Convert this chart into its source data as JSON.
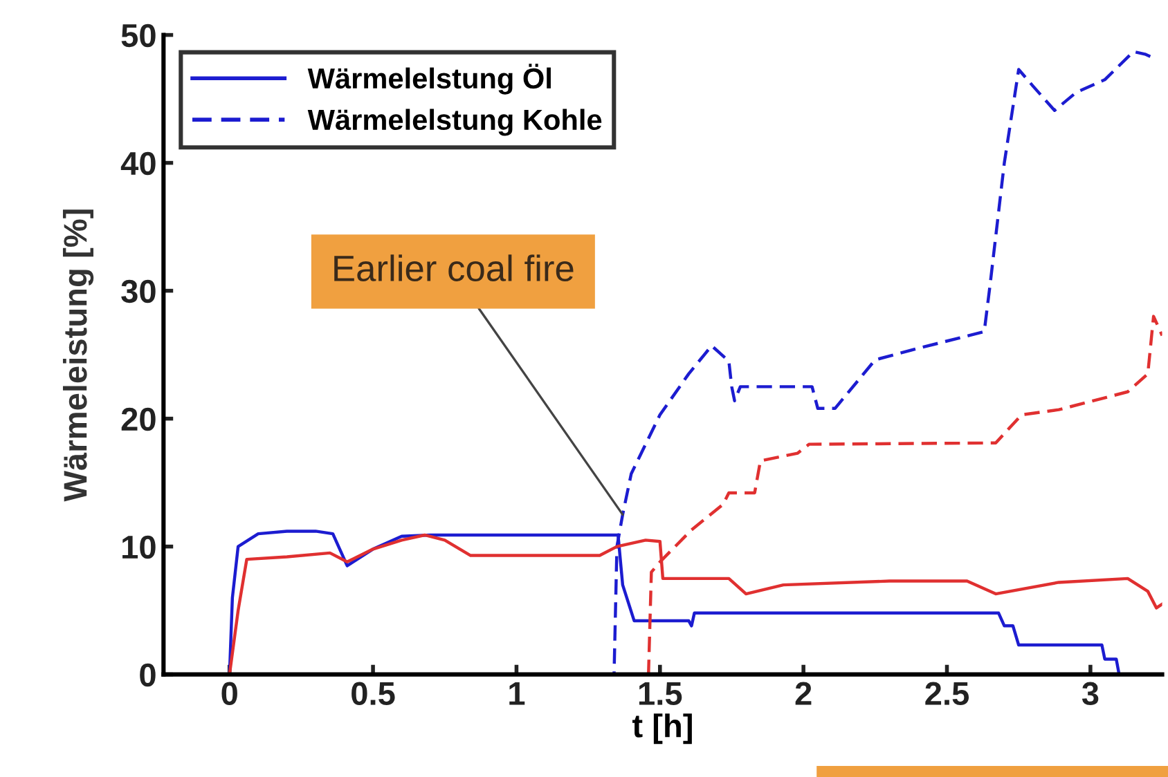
{
  "chart_data": {
    "type": "line",
    "xlabel": "t [h]",
    "ylabel": "Wärmeleistung [%]",
    "xlim": [
      -0.23,
      3.25
    ],
    "ylim": [
      0,
      50
    ],
    "xticks": [
      0,
      0.5,
      1,
      1.5,
      2,
      2.5,
      3
    ],
    "yticks": [
      0,
      10,
      20,
      30,
      40,
      50
    ],
    "legend": "top left",
    "series": [
      {
        "name": "Wärmelelstung Öl",
        "color": "#1c1cd0",
        "line_style": "solid",
        "x": [
          -0.23,
          0,
          0.01,
          0.03,
          0.1,
          0.2,
          0.3,
          0.36,
          0.41,
          0.5,
          0.6,
          0.7,
          1.0,
          1.354,
          1.37,
          1.41,
          1.6,
          1.61,
          1.62,
          2.0,
          2.68,
          2.7,
          2.73,
          2.75,
          3.04,
          3.05,
          3.09,
          3.1,
          3.25
        ],
        "values": [
          0,
          0,
          6,
          10,
          11,
          11.2,
          11.2,
          11,
          8.5,
          9.8,
          10.8,
          10.9,
          10.9,
          10.9,
          7,
          4.2,
          4.2,
          3.8,
          4.8,
          4.8,
          4.8,
          3.8,
          3.8,
          2.3,
          2.3,
          1.2,
          1.2,
          0,
          0
        ]
      },
      {
        "name": "Wärmelelstung Kohle",
        "color": "#1c1cd0",
        "line_style": "dashed",
        "x": [
          -0.23,
          1.0,
          1.33,
          1.34,
          1.35,
          1.37,
          1.4,
          1.5,
          1.6,
          1.68,
          1.74,
          1.75,
          1.76,
          1.78,
          2.03,
          2.05,
          2.11,
          2.25,
          2.4,
          2.63,
          2.65,
          2.7,
          2.75,
          2.8,
          2.875,
          2.95,
          3.05,
          3.15,
          3.19,
          3.22
        ],
        "values": [
          0,
          0,
          0,
          0,
          10,
          12.5,
          15.7,
          20.3,
          23.5,
          25.7,
          24.5,
          22.5,
          21.4,
          22.5,
          22.5,
          20.8,
          20.8,
          24.6,
          25.5,
          26.8,
          30.4,
          40,
          47.3,
          46,
          44.1,
          45.5,
          46.5,
          48.7,
          48.5,
          48.2
        ]
      },
      {
        "color": "#e03030",
        "line_style": "solid",
        "x": [
          -0.23,
          0,
          0.03,
          0.06,
          0.2,
          0.35,
          0.41,
          0.5,
          0.6,
          0.68,
          0.75,
          0.84,
          1.0,
          1.29,
          1.35,
          1.45,
          1.5,
          1.51,
          1.74,
          1.8,
          1.93,
          2.3,
          2.57,
          2.67,
          2.89,
          3.13,
          3.2,
          3.23,
          3.25
        ],
        "values": [
          0,
          0,
          5,
          9,
          9.2,
          9.5,
          8.8,
          9.8,
          10.5,
          10.9,
          10.5,
          9.3,
          9.3,
          9.3,
          10,
          10.5,
          10.4,
          7.5,
          7.5,
          6.3,
          7,
          7.3,
          7.3,
          6.3,
          7.2,
          7.5,
          6.5,
          5.2,
          5.5
        ]
      },
      {
        "color": "#e03030",
        "line_style": "dashed",
        "x": [
          -0.23,
          1.0,
          1.46,
          1.47,
          1.5,
          1.61,
          1.72,
          1.74,
          1.83,
          1.85,
          1.98,
          2.02,
          2.67,
          2.76,
          2.89,
          3.13,
          3.2,
          3.22,
          3.25
        ],
        "values": [
          0,
          0,
          0,
          8,
          8.8,
          11.3,
          13.3,
          14.2,
          14.2,
          16.7,
          17.3,
          18,
          18.1,
          20.3,
          20.7,
          22.1,
          23.5,
          28,
          26.5
        ]
      }
    ],
    "annotations": [
      {
        "text": "Earlier coal fire",
        "x": 1.37,
        "y": 12.5
      }
    ]
  }
}
